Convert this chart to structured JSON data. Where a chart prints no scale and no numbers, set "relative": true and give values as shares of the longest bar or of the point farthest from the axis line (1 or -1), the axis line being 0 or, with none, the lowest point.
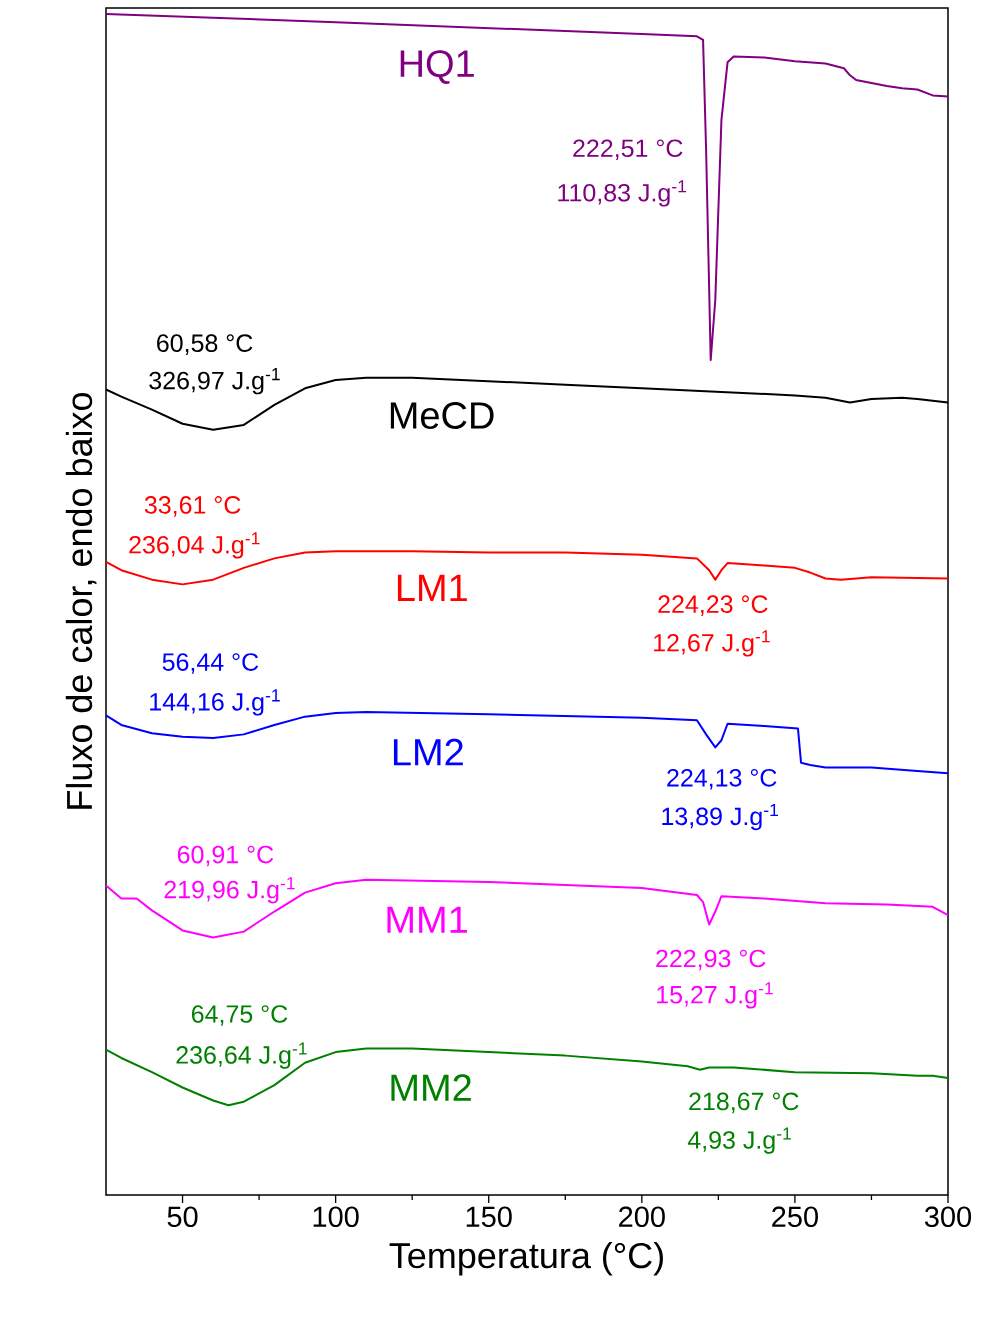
{
  "chart_data": {
    "type": "line",
    "relative": true,
    "xlabel": "Temperatura (°C)",
    "ylabel": "Fluxo de calor, endo baixo",
    "xlim": [
      25,
      300
    ],
    "xticks": [
      50,
      100,
      150,
      200,
      250,
      300
    ],
    "grid": false,
    "legend": false,
    "marker": "none",
    "line_style": "solid",
    "series": [
      {
        "name": "HQ1",
        "color": "#800080",
        "x": [
          25,
          100,
          150,
          200,
          218,
          220,
          221,
          222.5,
          224,
          226,
          228,
          230,
          240,
          250,
          260,
          266,
          268,
          270,
          280,
          285,
          290,
          295,
          300
        ],
        "values": [
          1.0,
          0.993,
          0.988,
          0.983,
          0.981,
          0.978,
          0.885,
          0.707,
          0.758,
          0.91,
          0.959,
          0.964,
          0.963,
          0.96,
          0.958,
          0.954,
          0.948,
          0.944,
          0.939,
          0.937,
          0.936,
          0.931,
          0.93
        ]
      },
      {
        "name": "MeCD",
        "color": "#000000",
        "x": [
          25,
          30,
          40,
          50,
          60,
          70,
          80,
          90,
          100,
          110,
          125,
          150,
          175,
          200,
          225,
          250,
          260,
          268,
          275,
          285,
          290,
          300
        ],
        "values": [
          0.682,
          0.676,
          0.665,
          0.653,
          0.648,
          0.652,
          0.669,
          0.683,
          0.69,
          0.692,
          0.692,
          0.689,
          0.686,
          0.683,
          0.68,
          0.677,
          0.675,
          0.671,
          0.674,
          0.675,
          0.674,
          0.671
        ]
      },
      {
        "name": "LM1",
        "color": "#ff0000",
        "x": [
          25,
          30,
          40,
          50,
          60,
          70,
          80,
          90,
          100,
          125,
          150,
          175,
          200,
          218,
          222,
          224,
          226,
          228,
          240,
          250,
          255,
          260,
          265,
          275,
          300
        ],
        "values": [
          0.536,
          0.529,
          0.521,
          0.517,
          0.521,
          0.531,
          0.539,
          0.544,
          0.545,
          0.545,
          0.544,
          0.544,
          0.542,
          0.539,
          0.529,
          0.521,
          0.529,
          0.535,
          0.533,
          0.531,
          0.527,
          0.522,
          0.521,
          0.523,
          0.522
        ]
      },
      {
        "name": "LM2",
        "color": "#0000ff",
        "x": [
          25,
          30,
          40,
          50,
          60,
          70,
          80,
          90,
          100,
          110,
          150,
          200,
          218,
          221,
          224,
          226,
          228,
          240,
          251,
          252,
          255,
          260,
          275,
          290,
          300
        ],
        "values": [
          0.406,
          0.398,
          0.391,
          0.388,
          0.387,
          0.39,
          0.398,
          0.405,
          0.408,
          0.409,
          0.407,
          0.404,
          0.402,
          0.39,
          0.379,
          0.385,
          0.399,
          0.397,
          0.395,
          0.366,
          0.364,
          0.362,
          0.362,
          0.359,
          0.357
        ]
      },
      {
        "name": "MM1",
        "color": "#ff00ff",
        "x": [
          25,
          30,
          35,
          40,
          50,
          60,
          70,
          80,
          90,
          100,
          110,
          150,
          200,
          218,
          220,
          222,
          224,
          226,
          240,
          260,
          280,
          295,
          300
        ],
        "values": [
          0.262,
          0.251,
          0.251,
          0.241,
          0.224,
          0.218,
          0.223,
          0.24,
          0.256,
          0.264,
          0.267,
          0.265,
          0.26,
          0.254,
          0.248,
          0.229,
          0.24,
          0.253,
          0.251,
          0.247,
          0.246,
          0.244,
          0.237
        ]
      },
      {
        "name": "MM2",
        "color": "#008000",
        "x": [
          25,
          30,
          40,
          50,
          60,
          65,
          70,
          80,
          90,
          100,
          110,
          125,
          150,
          175,
          200,
          215,
          219,
          222,
          230,
          250,
          275,
          290,
          295,
          300
        ],
        "values": [
          0.123,
          0.116,
          0.104,
          0.091,
          0.08,
          0.076,
          0.079,
          0.093,
          0.112,
          0.121,
          0.124,
          0.124,
          0.121,
          0.118,
          0.113,
          0.109,
          0.106,
          0.108,
          0.108,
          0.104,
          0.103,
          0.101,
          0.101,
          0.099
        ]
      }
    ],
    "annotations": [
      "222,51 °C",
      "110,83 J.g$^{-1}$",
      "60,58 °C",
      "326,97 J.g$^{-1}$",
      "33,61 °C",
      "236,04 J.g$^{-1}$",
      "224,23 °C",
      "12,67 J.g$^{-1}$",
      "56,44 °C",
      "144,16 J.g$^{-1}$",
      "224,13 °C",
      "13,89 J.g$^{-1}$",
      "60,91 °C",
      "219,96 J.g$^{-1}$",
      "222,93 °C",
      "15,27 J.g$^{-1}$",
      "64,75 °C",
      "236,64 J.g$^{-1}$",
      "218,67 °C",
      "4,93 J.g$^{-1}$"
    ]
  }
}
